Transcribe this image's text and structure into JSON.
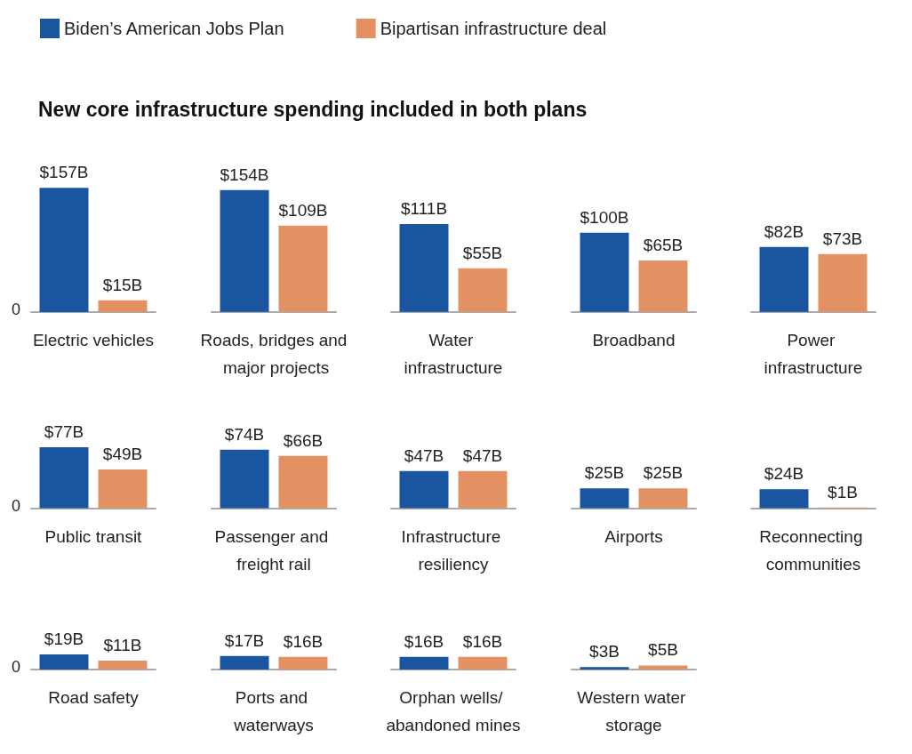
{
  "chart_data": [
    {
      "type": "bar",
      "title": "New core infrastructure spending included in both plans",
      "legend": "top",
      "annotations": [
        "0"
      ],
      "categories": [
        "Electric vehicles"
      ],
      "series": [
        {
          "name": "Biden’s American Jobs Plan",
          "color": "#1a56a0",
          "values": [
            157
          ],
          "value_labels": [
            "$157B"
          ]
        },
        {
          "name": "Bipartisan infrastructure deal",
          "color": "#e39162",
          "values": [
            15
          ],
          "value_labels": [
            "$15B"
          ]
        }
      ]
    },
    {
      "type": "bar",
      "categories": [
        "Roads, bridges and major projects"
      ],
      "tick_labels": "x",
      "series": [
        {
          "color": "#1a56a0",
          "values": [
            154
          ],
          "value_labels": [
            "$154B"
          ]
        },
        {
          "color": "#e39162",
          "values": [
            109
          ],
          "value_labels": [
            "$109B"
          ]
        }
      ]
    },
    {
      "type": "bar",
      "categories": [
        "Water infrastructure"
      ],
      "tick_labels": "x",
      "series": [
        {
          "color": "#1a56a0",
          "values": [
            111
          ],
          "value_labels": [
            "$111B"
          ]
        },
        {
          "color": "#e39162",
          "values": [
            55
          ],
          "value_labels": [
            "$55B"
          ]
        }
      ]
    },
    {
      "type": "bar",
      "categories": [
        "Broadband"
      ],
      "tick_labels": "x",
      "series": [
        {
          "color": "#1a56a0",
          "values": [
            100
          ],
          "value_labels": [
            "$100B"
          ]
        },
        {
          "color": "#e39162",
          "values": [
            65
          ],
          "value_labels": [
            "$65B"
          ]
        }
      ]
    },
    {
      "type": "bar",
      "categories": [
        "Power infrastructure"
      ],
      "tick_labels": "x",
      "series": [
        {
          "color": "#1a56a0",
          "values": [
            82
          ],
          "value_labels": [
            "$82B"
          ]
        },
        {
          "color": "#e39162",
          "values": [
            73
          ],
          "value_labels": [
            "$73B"
          ]
        }
      ]
    },
    {
      "type": "bar",
      "annotations": [
        "0"
      ],
      "categories": [
        "Public transit"
      ],
      "series": [
        {
          "color": "#1a56a0",
          "values": [
            77
          ],
          "value_labels": [
            "$77B"
          ]
        },
        {
          "color": "#e39162",
          "values": [
            49
          ],
          "value_labels": [
            "$49B"
          ]
        }
      ]
    },
    {
      "type": "bar",
      "categories": [
        "Passenger and freight rail"
      ],
      "tick_labels": "x",
      "series": [
        {
          "color": "#1a56a0",
          "values": [
            74
          ],
          "value_labels": [
            "$74B"
          ]
        },
        {
          "color": "#e39162",
          "values": [
            66
          ],
          "value_labels": [
            "$66B"
          ]
        }
      ]
    },
    {
      "type": "bar",
      "categories": [
        "Infrastructure resiliency"
      ],
      "tick_labels": "x",
      "series": [
        {
          "color": "#1a56a0",
          "values": [
            47
          ],
          "value_labels": [
            "$47B"
          ]
        },
        {
          "color": "#e39162",
          "values": [
            47
          ],
          "value_labels": [
            "$47B"
          ]
        }
      ]
    },
    {
      "type": "bar",
      "categories": [
        "Airports"
      ],
      "tick_labels": "x",
      "series": [
        {
          "color": "#1a56a0",
          "values": [
            25
          ],
          "value_labels": [
            "$25B"
          ]
        },
        {
          "color": "#e39162",
          "values": [
            25
          ],
          "value_labels": [
            "$25B"
          ]
        }
      ]
    },
    {
      "type": "bar",
      "categories": [
        "Reconnecting communities"
      ],
      "tick_labels": "x",
      "series": [
        {
          "color": "#1a56a0",
          "values": [
            24
          ],
          "value_labels": [
            "$24B"
          ]
        },
        {
          "color": "#e39162",
          "values": [
            1
          ],
          "value_labels": [
            "$1B"
          ]
        }
      ]
    },
    {
      "type": "bar",
      "annotations": [
        "0"
      ],
      "categories": [
        "Road safety"
      ],
      "series": [
        {
          "color": "#1a56a0",
          "values": [
            19
          ],
          "value_labels": [
            "$19B"
          ]
        },
        {
          "color": "#e39162",
          "values": [
            11
          ],
          "value_labels": [
            "$11B"
          ]
        }
      ]
    },
    {
      "type": "bar",
      "categories": [
        "Ports and waterways"
      ],
      "tick_labels": "x",
      "series": [
        {
          "color": "#1a56a0",
          "values": [
            17
          ],
          "value_labels": [
            "$17B"
          ]
        },
        {
          "color": "#e39162",
          "values": [
            16
          ],
          "value_labels": [
            "$16B"
          ]
        }
      ]
    },
    {
      "type": "bar",
      "categories": [
        "Orphan wells/ abandoned mines"
      ],
      "tick_labels": "x",
      "series": [
        {
          "color": "#1a56a0",
          "values": [
            16
          ],
          "value_labels": [
            "$16B"
          ]
        },
        {
          "color": "#e39162",
          "values": [
            16
          ],
          "value_labels": [
            "$16B"
          ]
        }
      ]
    },
    {
      "type": "bar",
      "categories": [
        "Western water storage"
      ],
      "tick_labels": "x",
      "series": [
        {
          "color": "#1a56a0",
          "values": [
            3
          ],
          "value_labels": [
            "$3B"
          ]
        },
        {
          "color": "#e39162",
          "values": [
            5
          ],
          "value_labels": [
            "$5B"
          ]
        }
      ]
    }
  ]
}
